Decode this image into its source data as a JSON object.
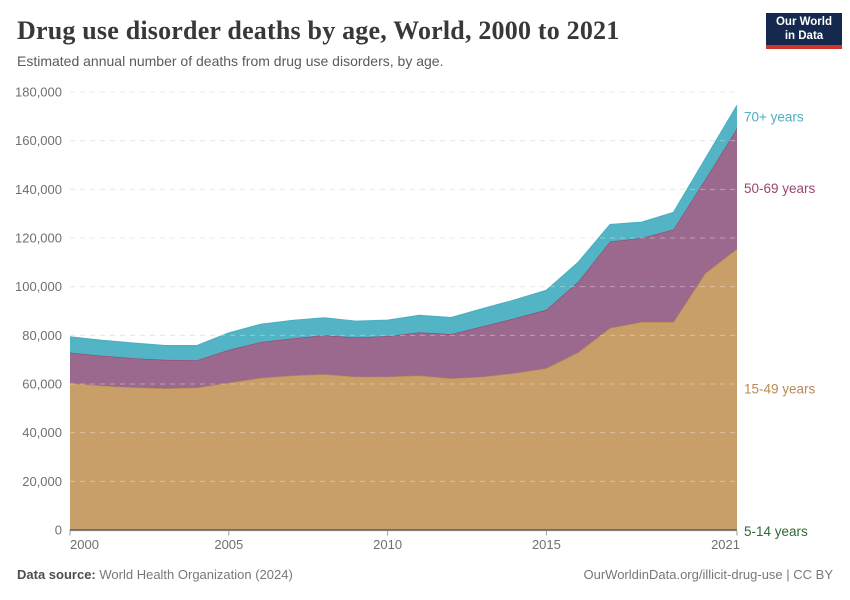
{
  "header": {
    "title": "Drug use disorder deaths by age, World, 2000 to 2021",
    "subtitle": "Estimated annual number of deaths from drug use disorders, by age.",
    "logo": {
      "line1": "Our World",
      "line2": "in Data",
      "bg_color": "#14294d",
      "stripe_color": "#d0352a"
    }
  },
  "chart_data": {
    "type": "area",
    "stacked": true,
    "title": "Drug use disorder deaths by age, World, 2000 to 2021",
    "xlabel": "",
    "ylabel": "",
    "ylim": [
      0,
      180000
    ],
    "grid": "dashed horizontal",
    "legend_position": "right edge, series-colored labels",
    "x": [
      2000,
      2001,
      2002,
      2003,
      2004,
      2005,
      2006,
      2007,
      2008,
      2009,
      2010,
      2011,
      2012,
      2013,
      2014,
      2015,
      2016,
      2017,
      2018,
      2019,
      2020,
      2021
    ],
    "series": [
      {
        "name": "5-14 years",
        "color": "#2F6A32",
        "fill": "#41713A",
        "values": [
          300,
          300,
          300,
          300,
          300,
          300,
          300,
          300,
          300,
          300,
          300,
          300,
          300,
          300,
          300,
          300,
          300,
          300,
          300,
          300,
          300,
          300
        ]
      },
      {
        "name": "15-49 years",
        "color": "#B98A54",
        "fill": "#C89F68",
        "values": [
          60100,
          59000,
          58300,
          57900,
          58200,
          60200,
          62200,
          63200,
          63700,
          62700,
          62700,
          63200,
          62000,
          62700,
          64200,
          66200,
          72700,
          82700,
          85200,
          85200,
          105200,
          115200
        ]
      },
      {
        "name": "50-69 years",
        "color": "#99466E",
        "fill": "#9C698E",
        "values": [
          12500,
          12300,
          12000,
          11700,
          11300,
          13500,
          14700,
          15200,
          16000,
          16100,
          16700,
          17700,
          18200,
          20700,
          22500,
          24000,
          29000,
          35500,
          34500,
          38000,
          38500,
          49500
        ]
      },
      {
        "name": "70+ years",
        "color": "#4EAFC1",
        "fill": "#52B4C4",
        "values": [
          6500,
          6300,
          6200,
          5900,
          6000,
          7000,
          7300,
          7400,
          7200,
          6700,
          6500,
          7000,
          6800,
          7300,
          7500,
          8000,
          8000,
          7000,
          6500,
          7000,
          8500,
          9500
        ]
      }
    ],
    "yticks": [
      {
        "value": 0,
        "label": "0"
      },
      {
        "value": 20000,
        "label": "20,000"
      },
      {
        "value": 40000,
        "label": "40,000"
      },
      {
        "value": 60000,
        "label": "60,000"
      },
      {
        "value": 80000,
        "label": "80,000"
      },
      {
        "value": 100000,
        "label": "100,000"
      },
      {
        "value": 120000,
        "label": "120,000"
      },
      {
        "value": 140000,
        "label": "140,000"
      },
      {
        "value": 160000,
        "label": "160,000"
      },
      {
        "value": 180000,
        "label": "180,000"
      }
    ],
    "xticks": [
      {
        "value": 2000,
        "label": "2000"
      },
      {
        "value": 2005,
        "label": "2005"
      },
      {
        "value": 2010,
        "label": "2010"
      },
      {
        "value": 2015,
        "label": "2015"
      },
      {
        "value": 2021,
        "label": "2021"
      }
    ]
  },
  "footer": {
    "datasource_label": "Data source:",
    "datasource_value": "World Health Organization (2024)",
    "link_text": "OurWorldinData.org/illicit-drug-use | CC BY"
  }
}
